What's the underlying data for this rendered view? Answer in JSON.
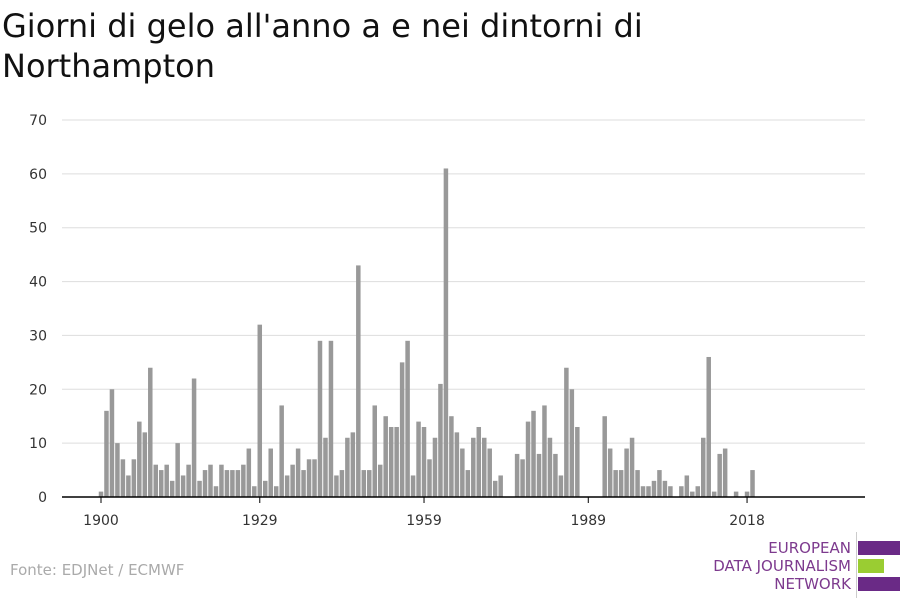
{
  "title": "Giorni di gelo all'anno a e nei dintorni di Northampton",
  "source": "Fonte: EDJNet / ECMWF",
  "logo": {
    "line1": "EUROPEAN",
    "line2": "DATA JOURNALISM",
    "line3": "NETWORK",
    "colors": [
      "#6a2a86",
      "#9acd32",
      "#6a2a86"
    ]
  },
  "colors": {
    "bar": "#999999",
    "grid": "#dddddd",
    "axis": "#000000",
    "tick_text": "#333333"
  },
  "chart_data": {
    "type": "bar",
    "x_start": 1900,
    "x_end": 2020,
    "x_ticks": [
      1900,
      1929,
      1959,
      1989,
      2018
    ],
    "y_ticks": [
      0,
      10,
      20,
      30,
      40,
      50,
      60,
      70
    ],
    "ylim": [
      0,
      70
    ],
    "grid": "horizontal",
    "values": [
      1,
      16,
      20,
      10,
      7,
      4,
      7,
      14,
      12,
      24,
      6,
      5,
      6,
      3,
      10,
      4,
      6,
      22,
      3,
      5,
      6,
      2,
      6,
      5,
      5,
      5,
      6,
      9,
      2,
      32,
      3,
      9,
      2,
      17,
      4,
      6,
      9,
      5,
      7,
      7,
      29,
      11,
      29,
      4,
      5,
      11,
      12,
      43,
      5,
      5,
      17,
      6,
      15,
      13,
      13,
      25,
      29,
      4,
      14,
      13,
      7,
      11,
      21,
      61,
      15,
      12,
      9,
      5,
      11,
      13,
      11,
      9,
      3,
      4,
      0,
      0,
      8,
      7,
      14,
      16,
      8,
      17,
      11,
      8,
      4,
      24,
      20,
      13,
      0,
      0,
      0,
      0,
      15,
      9,
      5,
      5,
      9,
      11,
      5,
      2,
      2,
      3,
      5,
      3,
      2,
      0,
      2,
      4,
      1,
      2,
      11,
      26,
      1,
      8,
      9,
      0,
      1,
      0,
      1,
      5,
      0
    ]
  }
}
